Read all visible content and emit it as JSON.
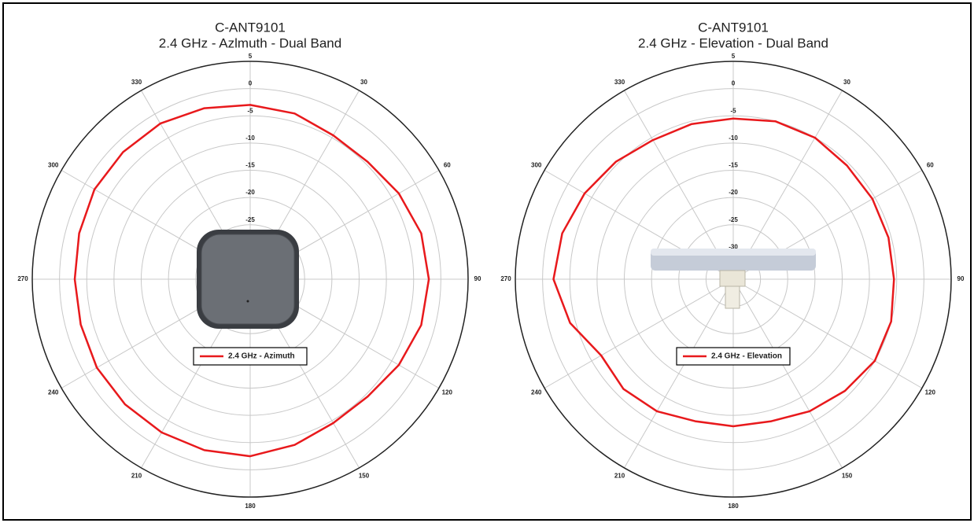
{
  "chart_data": [
    {
      "type": "polar",
      "title": "C-ANT9101",
      "subtitle": "2.4 GHz - Azlmuth - Dual Band",
      "direction": "clockwise",
      "zero": "top",
      "rlim": [
        -35,
        5
      ],
      "rticks": [
        5,
        0,
        -5,
        -10,
        -15,
        -20,
        -25,
        -30
      ],
      "thetaticks": [
        30,
        60,
        90,
        120,
        150,
        180,
        210,
        240,
        270,
        300,
        330
      ],
      "theta": [
        0,
        15,
        30,
        45,
        60,
        75,
        90,
        105,
        120,
        135,
        150,
        165,
        180,
        195,
        210,
        225,
        240,
        255,
        270,
        285,
        300,
        315,
        330,
        345
      ],
      "series": [
        {
          "name": "2.4 GHz - Azimuth",
          "color": "#e8191c",
          "values": [
            -3,
            -3.5,
            -4.5,
            -4.5,
            -3.5,
            -2.5,
            -2.2,
            -2.5,
            -3.5,
            -4.5,
            -4.5,
            -3.5,
            -2.5,
            -2.5,
            -2.5,
            -2.5,
            -2.5,
            -2.8,
            -2.8,
            -2.5,
            -2,
            -2,
            -2,
            -2.5
          ]
        }
      ],
      "grid": true
    },
    {
      "type": "polar",
      "title": "C-ANT9101",
      "subtitle": "2.4 GHz - Elevation - Dual Band",
      "direction": "clockwise",
      "zero": "top",
      "rlim": [
        -35,
        5
      ],
      "rticks": [
        5,
        0,
        -5,
        -10,
        -15,
        -20,
        -25,
        -30
      ],
      "thetaticks": [
        30,
        60,
        90,
        120,
        150,
        180,
        210,
        240,
        270,
        300,
        330
      ],
      "theta": [
        0,
        15,
        30,
        45,
        60,
        75,
        90,
        105,
        120,
        135,
        150,
        165,
        180,
        195,
        210,
        225,
        240,
        255,
        270,
        285,
        300,
        315,
        330,
        345
      ],
      "series": [
        {
          "name": "2.4 GHz - Elevation",
          "color": "#e8191c",
          "values": [
            -5.5,
            -5,
            -5,
            -5.5,
            -5.5,
            -5.5,
            -5.5,
            -5,
            -5,
            -6,
            -7,
            -8,
            -8,
            -8,
            -7,
            -6.5,
            -7,
            -4,
            -2,
            -2.5,
            -3.5,
            -4.5,
            -5.5,
            -5.5
          ]
        }
      ],
      "grid": true
    }
  ]
}
